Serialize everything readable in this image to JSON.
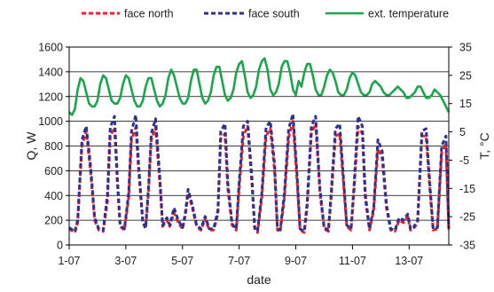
{
  "chart_data": {
    "type": "line",
    "title": "",
    "xlabel": "date",
    "ylabel": "Q, W",
    "y2label": "T, °C",
    "xlim": [
      1,
      14.4
    ],
    "ylim": [
      0,
      1600
    ],
    "y2lim": [
      -35,
      35
    ],
    "x_ticks": [
      1,
      3,
      5,
      7,
      9,
      11,
      13
    ],
    "x_tick_labels": [
      "1-07",
      "3-07",
      "5-07",
      "7-07",
      "9-07",
      "11-07",
      "13-07"
    ],
    "y_ticks": [
      0,
      200,
      400,
      600,
      800,
      1000,
      1200,
      1400,
      1600
    ],
    "y2_ticks": [
      -35,
      -25,
      -15,
      -5,
      5,
      15,
      25,
      35
    ],
    "grid": "horizontal",
    "legend_position": "top",
    "series": [
      {
        "name": "face north",
        "axis": "left",
        "style": "dashed",
        "color": "#e8232a",
        "x": [
          1.0,
          1.2,
          1.3,
          1.45,
          1.6,
          1.75,
          1.9,
          2.05,
          2.2,
          2.35,
          2.45,
          2.6,
          2.7,
          2.8,
          2.95,
          3.1,
          3.2,
          3.35,
          3.45,
          3.6,
          3.7,
          3.8,
          3.9,
          4.05,
          4.2,
          4.3,
          4.45,
          4.55,
          4.7,
          4.85,
          5.0,
          5.1,
          5.2,
          5.35,
          5.5,
          5.65,
          5.8,
          5.95,
          6.1,
          6.25,
          6.35,
          6.5,
          6.6,
          6.75,
          6.9,
          7.0,
          7.15,
          7.3,
          7.45,
          7.55,
          7.65,
          7.8,
          7.95,
          8.1,
          8.25,
          8.35,
          8.45,
          8.6,
          8.75,
          8.9,
          9.05,
          9.15,
          9.3,
          9.4,
          9.55,
          9.7,
          9.85,
          10.0,
          10.15,
          10.25,
          10.4,
          10.55,
          10.65,
          10.8,
          10.95,
          11.05,
          11.2,
          11.35,
          11.45,
          11.6,
          11.75,
          11.9,
          12.05,
          12.2,
          12.35,
          12.5,
          12.65,
          12.8,
          12.95,
          13.05,
          13.15,
          13.3,
          13.45,
          13.6,
          13.75,
          13.85,
          14.0,
          14.15,
          14.3,
          14.4
        ],
        "values": [
          130,
          100,
          180,
          800,
          920,
          600,
          200,
          120,
          110,
          350,
          880,
          950,
          500,
          150,
          120,
          380,
          850,
          950,
          600,
          180,
          130,
          420,
          850,
          950,
          500,
          150,
          200,
          150,
          260,
          180,
          130,
          240,
          420,
          300,
          150,
          120,
          210,
          120,
          120,
          250,
          860,
          900,
          450,
          160,
          120,
          450,
          880,
          960,
          500,
          130,
          100,
          380,
          880,
          940,
          600,
          120,
          110,
          380,
          870,
          1000,
          500,
          120,
          100,
          300,
          900,
          980,
          420,
          130,
          110,
          380,
          880,
          900,
          600,
          150,
          120,
          420,
          960,
          900,
          380,
          120,
          280,
          780,
          700,
          300,
          120,
          110,
          200,
          180,
          230,
          120,
          130,
          180,
          880,
          880,
          400,
          120,
          130,
          750,
          820,
          120
        ]
      },
      {
        "name": "face south",
        "axis": "left",
        "style": "dashed",
        "color": "#2e3192",
        "x": [
          1.0,
          1.2,
          1.3,
          1.45,
          1.6,
          1.75,
          1.9,
          2.05,
          2.2,
          2.35,
          2.45,
          2.6,
          2.7,
          2.8,
          2.95,
          3.1,
          3.2,
          3.35,
          3.45,
          3.6,
          3.7,
          3.8,
          3.9,
          4.05,
          4.2,
          4.3,
          4.45,
          4.55,
          4.7,
          4.85,
          5.0,
          5.1,
          5.2,
          5.35,
          5.5,
          5.65,
          5.8,
          5.95,
          6.1,
          6.25,
          6.35,
          6.5,
          6.6,
          6.75,
          6.9,
          7.0,
          7.15,
          7.3,
          7.45,
          7.55,
          7.65,
          7.8,
          7.95,
          8.1,
          8.25,
          8.35,
          8.45,
          8.6,
          8.75,
          8.9,
          9.05,
          9.15,
          9.3,
          9.4,
          9.55,
          9.7,
          9.85,
          10.0,
          10.15,
          10.25,
          10.4,
          10.55,
          10.65,
          10.8,
          10.95,
          11.05,
          11.2,
          11.35,
          11.45,
          11.6,
          11.75,
          11.9,
          12.05,
          12.2,
          12.35,
          12.5,
          12.65,
          12.8,
          12.95,
          13.05,
          13.15,
          13.3,
          13.45,
          13.6,
          13.75,
          13.85,
          14.0,
          14.15,
          14.3,
          14.4
        ],
        "values": [
          140,
          110,
          200,
          850,
          960,
          650,
          220,
          130,
          120,
          400,
          950,
          1040,
          550,
          160,
          130,
          420,
          920,
          1050,
          650,
          190,
          140,
          460,
          900,
          1020,
          550,
          160,
          220,
          160,
          300,
          200,
          140,
          260,
          450,
          320,
          160,
          130,
          230,
          130,
          130,
          280,
          920,
          980,
          500,
          170,
          130,
          500,
          960,
          1000,
          550,
          140,
          110,
          420,
          950,
          1000,
          650,
          130,
          120,
          420,
          940,
          1060,
          550,
          130,
          110,
          340,
          960,
          1040,
          460,
          140,
          120,
          420,
          940,
          980,
          650,
          160,
          130,
          460,
          1040,
          960,
          420,
          130,
          300,
          850,
          760,
          330,
          130,
          120,
          220,
          200,
          250,
          130,
          140,
          200,
          920,
          940,
          440,
          130,
          140,
          800,
          880,
          130
        ]
      },
      {
        "name": "ext. temperature",
        "axis": "right",
        "style": "solid",
        "color": "#1aa64a",
        "x": [
          1.0,
          1.1,
          1.2,
          1.3,
          1.4,
          1.5,
          1.6,
          1.7,
          1.8,
          1.9,
          2.0,
          2.1,
          2.2,
          2.3,
          2.4,
          2.5,
          2.6,
          2.7,
          2.8,
          2.9,
          3.0,
          3.1,
          3.2,
          3.3,
          3.4,
          3.5,
          3.6,
          3.7,
          3.8,
          3.9,
          4.0,
          4.1,
          4.2,
          4.3,
          4.4,
          4.5,
          4.6,
          4.7,
          4.8,
          4.9,
          5.0,
          5.1,
          5.2,
          5.3,
          5.4,
          5.5,
          5.6,
          5.7,
          5.8,
          5.9,
          6.0,
          6.1,
          6.2,
          6.3,
          6.4,
          6.5,
          6.6,
          6.7,
          6.8,
          6.9,
          7.0,
          7.1,
          7.2,
          7.3,
          7.4,
          7.5,
          7.6,
          7.7,
          7.8,
          7.9,
          8.0,
          8.1,
          8.2,
          8.3,
          8.4,
          8.5,
          8.6,
          8.7,
          8.8,
          8.9,
          9.0,
          9.1,
          9.2,
          9.3,
          9.4,
          9.5,
          9.6,
          9.7,
          9.8,
          9.9,
          10.0,
          10.1,
          10.2,
          10.3,
          10.4,
          10.5,
          10.6,
          10.7,
          10.8,
          10.9,
          11.0,
          11.1,
          11.2,
          11.3,
          11.4,
          11.5,
          11.6,
          11.7,
          11.8,
          11.9,
          12.0,
          12.1,
          12.2,
          12.3,
          12.4,
          12.5,
          12.6,
          12.7,
          12.8,
          12.9,
          13.0,
          13.1,
          13.2,
          13.3,
          13.4,
          13.5,
          13.6,
          13.7,
          13.8,
          13.9,
          14.0,
          14.1,
          14.2,
          14.3,
          14.4
        ],
        "values": [
          12,
          11,
          13,
          20,
          24,
          23,
          19,
          15,
          14,
          14,
          16,
          22,
          25,
          24,
          20,
          16,
          15,
          15,
          17,
          22,
          25,
          24,
          20,
          16,
          14,
          14,
          16,
          21,
          24,
          24,
          20,
          16,
          14,
          15,
          18,
          24,
          27,
          25,
          21,
          17,
          15,
          15,
          17,
          23,
          27,
          27,
          22,
          17,
          15,
          16,
          19,
          25,
          28,
          28,
          23,
          18,
          16,
          17,
          20,
          26,
          29,
          30,
          25,
          19,
          17,
          18,
          21,
          27,
          30,
          31,
          27,
          20,
          18,
          19,
          22,
          28,
          30,
          30,
          26,
          20,
          18,
          23,
          21,
          26,
          29,
          29,
          25,
          20,
          18,
          18,
          21,
          25,
          27,
          26,
          23,
          19,
          18,
          18,
          20,
          24,
          26,
          25,
          22,
          19,
          18,
          18,
          19,
          22,
          23,
          22,
          21,
          19,
          18,
          18,
          19,
          20,
          21,
          20,
          19,
          17,
          17,
          18,
          19,
          21,
          21,
          19,
          17,
          17,
          18,
          20,
          19,
          18,
          16,
          14,
          12
        ]
      }
    ]
  }
}
